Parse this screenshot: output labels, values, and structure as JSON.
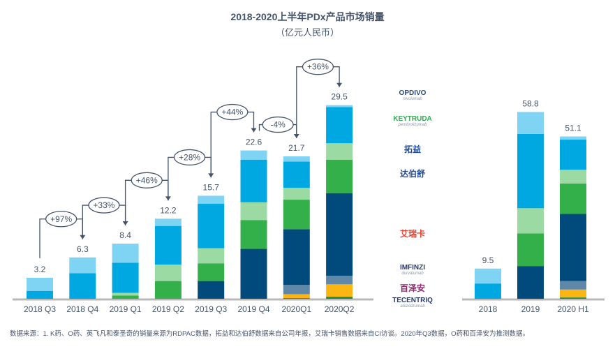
{
  "chart_data": [
    {
      "type": "bar",
      "stacked": true,
      "title": "2018-2020上半年PDx产品市场销量",
      "subtitle": "（亿元人民币）",
      "categories": [
        "2018 Q3",
        "2018 Q4",
        "2019 Q1",
        "2019 Q2",
        "2019 Q3",
        "2019 Q4",
        "2020Q1",
        "2020Q2"
      ],
      "totals": [
        "3.2",
        "6.3",
        "8.4",
        "12.2",
        "15.7",
        "22.6",
        "21.7",
        "29.5"
      ],
      "series": [
        {
          "name": "百泽安",
          "color": "#1a8a3a",
          "values": [
            0,
            0,
            0,
            0,
            0,
            0,
            0.1,
            0.3
          ]
        },
        {
          "name": "TECENTRIQ",
          "color": "#fbb614",
          "values": [
            0,
            0,
            0,
            0,
            0,
            0,
            0.6,
            1.9
          ]
        },
        {
          "name": "IMFINZI",
          "color": "#5f87a8",
          "values": [
            0,
            0,
            0,
            0,
            0,
            0,
            1.4,
            1.3
          ]
        },
        {
          "name": "艾瑞卡",
          "color": "#004a7c",
          "values": [
            0,
            0,
            0,
            0,
            2.7,
            7.6,
            8.5,
            12.6
          ]
        },
        {
          "name": "达伯舒",
          "color": "#34b04a",
          "values": [
            0,
            0,
            0.5,
            2.7,
            2.7,
            4.4,
            4.5,
            5.1
          ]
        },
        {
          "name": "拓益",
          "color": "#9bdba3",
          "values": [
            0,
            0,
            0.4,
            2.5,
            2.3,
            2.7,
            1.8,
            2.5
          ]
        },
        {
          "name": "KEYTRUDA",
          "color": "#00a8e2",
          "values": [
            1.2,
            3.9,
            4.6,
            5.9,
            6.8,
            6.5,
            4.0,
            5.5
          ]
        },
        {
          "name": "OPDIVO",
          "color": "#7fd4f3",
          "values": [
            2.0,
            2.4,
            2.9,
            1.1,
            1.2,
            1.4,
            0.8,
            0.3
          ]
        }
      ],
      "growth_annotations": [
        {
          "from": "2018 Q3",
          "to": "2018 Q4",
          "label": "+97%"
        },
        {
          "from": "2018 Q4",
          "to": "2019 Q1",
          "label": "+33%"
        },
        {
          "from": "2019 Q1",
          "to": "2019 Q2",
          "label": "+46%"
        },
        {
          "from": "2019 Q2",
          "to": "2019 Q3",
          "label": "+28%"
        },
        {
          "from": "2019 Q3",
          "to": "2019 Q4",
          "label": "+44%"
        },
        {
          "from": "2019 Q4",
          "to": "2020Q1",
          "label": "-4%"
        },
        {
          "from": "2020Q1",
          "to": "2020Q2",
          "label": "+36%"
        }
      ],
      "ylim": [
        0,
        32
      ],
      "grid": false
    },
    {
      "type": "bar",
      "stacked": true,
      "categories": [
        "2018",
        "2019",
        "2020 H1"
      ],
      "totals": [
        "9.5",
        "58.8",
        "51.1"
      ],
      "series": [
        {
          "name": "百泽安",
          "color": "#1a8a3a",
          "values": [
            0,
            0,
            0.4
          ]
        },
        {
          "name": "TECENTRIQ",
          "color": "#fbb614",
          "values": [
            0,
            0,
            2.5
          ]
        },
        {
          "name": "IMFINZI",
          "color": "#5f87a8",
          "values": [
            0,
            0,
            2.7
          ]
        },
        {
          "name": "艾瑞卡",
          "color": "#004a7c",
          "values": [
            0,
            10.3,
            21.1
          ]
        },
        {
          "name": "达伯舒",
          "color": "#34b04a",
          "values": [
            0,
            10.3,
            9.6
          ]
        },
        {
          "name": "拓益",
          "color": "#9bdba3",
          "values": [
            0,
            7.9,
            4.3
          ]
        },
        {
          "name": "KEYTRUDA",
          "color": "#00a8e2",
          "values": [
            4.8,
            23.4,
            9.5
          ]
        },
        {
          "name": "OPDIVO",
          "color": "#7fd4f3",
          "values": [
            4.7,
            6.9,
            1.0
          ]
        }
      ],
      "ylim": [
        0,
        64
      ],
      "grid": false
    }
  ],
  "legend": {
    "items": [
      {
        "name": "OPDIVO",
        "sub": "nivolumab",
        "color": "#2a4a7a"
      },
      {
        "name": "KEYTRUDA",
        "sub": "pembrolizumab",
        "color": "#34a853"
      },
      {
        "name": "拓益",
        "color": "#1e4c9a"
      },
      {
        "name": "达伯舒",
        "color": "#1e4c9a"
      },
      {
        "name": "艾瑞卡",
        "color": "#e8402c"
      },
      {
        "name": "IMFINZI",
        "sub": "durvalumab",
        "color": "#2a3a6a"
      },
      {
        "name": "百泽安",
        "color": "#8a2a6a"
      },
      {
        "name": "TECENTRIQ",
        "sub": "atezolizumab",
        "color": "#2a3a6a"
      }
    ]
  },
  "footnote": "数据来源：1. K药、O药、英飞凡和泰圣奇的销量来源为RDPAC数据，拓益和达伯舒数据来自公司年报，艾瑞卡销售数据来自CI访谈。2020年Q3数据，O药和百泽安为推测数据。"
}
